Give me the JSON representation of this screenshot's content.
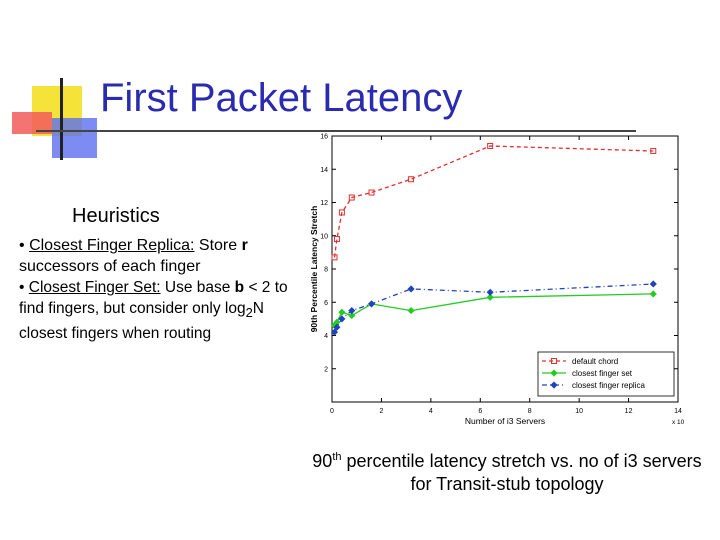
{
  "slide": {
    "title": "First Packet Latency",
    "heading": "Heuristics",
    "bullet1": {
      "dot": "•",
      "label": "Closest Finger Replica:",
      "text_a": " Store",
      "bold": "r",
      "text_b": " successors of each finger"
    },
    "bullet2": {
      "dot": "•",
      "label": "Closest Finger Set:",
      "text_a": "  Use base",
      "bold": "b",
      "text_b": " < 2 to find fingers, but consider only log",
      "sub": "2",
      "text_c": "N closest fingers when routing"
    },
    "caption": {
      "part1": "90",
      "sup": "th",
      "part2": " percentile latency stretch vs. no of i3 servers for Transit-stub topology"
    }
  },
  "chart_data": {
    "type": "line",
    "title": "",
    "xlabel": "Number of i3 Servers",
    "ylabel": "90th Percentile Latency Stretch",
    "x_multiplier": "x 10",
    "x_multiplier_exp": "4",
    "xlim": [
      0,
      14
    ],
    "ylim": [
      0,
      16
    ],
    "xticks": [
      0,
      2,
      4,
      6,
      8,
      10,
      12,
      14
    ],
    "yticks": [
      2,
      4,
      6,
      8,
      10,
      12,
      14,
      16
    ],
    "grid": false,
    "legend_position": "bottom-right",
    "series": [
      {
        "name": "default chord",
        "color": "#e03030",
        "marker": "square",
        "dash": "4,3",
        "points": [
          [
            0.1,
            8.7
          ],
          [
            0.2,
            9.8
          ],
          [
            0.4,
            11.4
          ],
          [
            0.8,
            12.3
          ],
          [
            1.6,
            12.6
          ],
          [
            3.2,
            13.4
          ],
          [
            6.4,
            15.4
          ],
          [
            13.0,
            15.1
          ]
        ]
      },
      {
        "name": "closest finger set",
        "color": "#22cc22",
        "marker": "diamond",
        "dash": "",
        "points": [
          [
            0.1,
            4.6
          ],
          [
            0.2,
            4.8
          ],
          [
            0.4,
            5.4
          ],
          [
            0.8,
            5.2
          ],
          [
            1.6,
            5.9
          ],
          [
            3.2,
            5.5
          ],
          [
            6.4,
            6.3
          ],
          [
            13.0,
            6.5
          ]
        ]
      },
      {
        "name": "closest finger replica",
        "color": "#2244bb",
        "marker": "diamond",
        "dash": "5,3,1,3",
        "points": [
          [
            0.1,
            4.2
          ],
          [
            0.2,
            4.5
          ],
          [
            0.4,
            5.0
          ],
          [
            0.8,
            5.5
          ],
          [
            1.6,
            5.9
          ],
          [
            3.2,
            6.8
          ],
          [
            6.4,
            6.6
          ],
          [
            13.0,
            7.1
          ]
        ]
      }
    ]
  }
}
